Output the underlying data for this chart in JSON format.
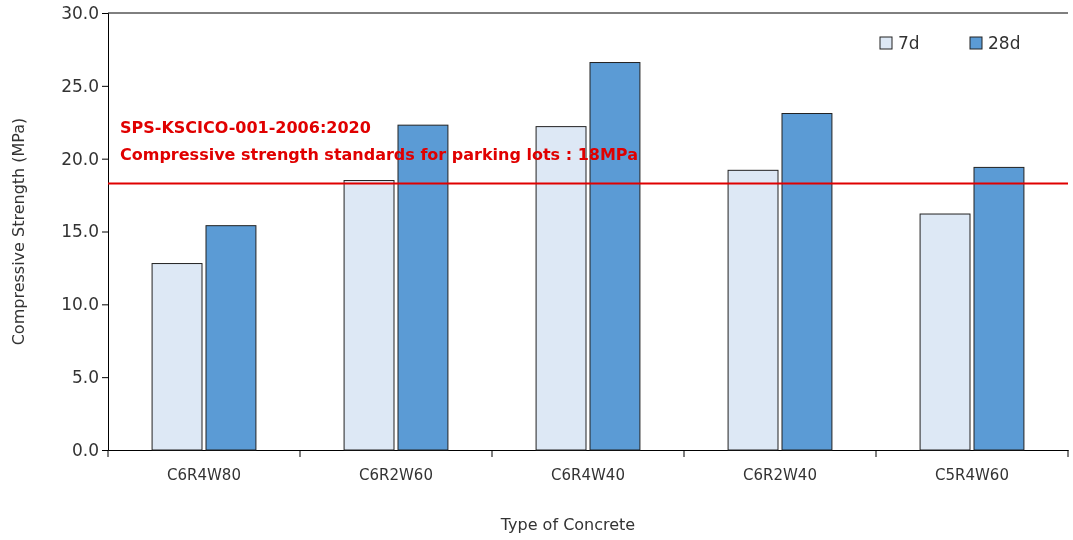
{
  "chart_data": {
    "type": "bar",
    "xlabel": "Type of Concrete",
    "ylabel": "Compressive Strength (MPa)",
    "categories": [
      "C6R4W80",
      "C6R2W60",
      "C6R4W40",
      "C6R2W40",
      "C5R4W60"
    ],
    "series": [
      {
        "name": "7d",
        "color": "#dde8f5",
        "values": [
          12.8,
          18.5,
          22.2,
          19.2,
          16.2
        ]
      },
      {
        "name": "28d",
        "color": "#5b9bd5",
        "values": [
          15.4,
          22.3,
          26.6,
          23.1,
          19.4
        ]
      }
    ],
    "ylim": [
      0,
      30
    ],
    "yticks": [
      {
        "value": 0,
        "label": "0.0"
      },
      {
        "value": 5,
        "label": "5.0"
      },
      {
        "value": 10,
        "label": "10.0"
      },
      {
        "value": 15,
        "label": "15.0"
      },
      {
        "value": 20,
        "label": "20.0"
      },
      {
        "value": 25,
        "label": "25.0"
      },
      {
        "value": 30,
        "label": "30.0"
      }
    ],
    "ref_lines": [
      {
        "axis": "y",
        "value": 18.3,
        "color": "#e00000",
        "label": "SPS-KSCICO-001-2006:2020\nCompressive strength standards for parking lots : 18MPa"
      }
    ],
    "grid": false,
    "legend": "top right"
  }
}
